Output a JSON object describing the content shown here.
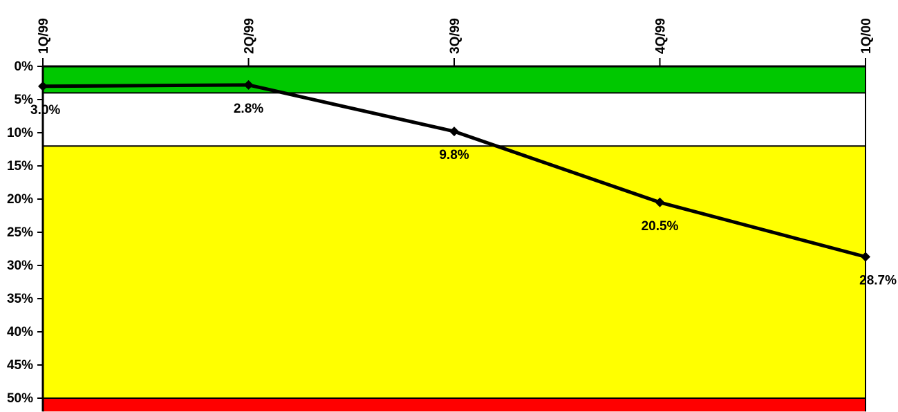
{
  "chart_data": {
    "type": "line",
    "title": "",
    "xlabel": "",
    "ylabel": "",
    "categories": [
      "1Q/99",
      "2Q/99",
      "3Q/99",
      "4Q/99",
      "1Q/00"
    ],
    "series": [
      {
        "values": [
          3.0,
          2.8,
          9.8,
          20.5,
          28.7
        ],
        "labels": [
          "3.0%",
          "2.8%",
          "9.8%",
          "20.5%",
          "28.7%"
        ],
        "color": "#000000"
      }
    ],
    "ylim": [
      0,
      52
    ],
    "y_inverted": true,
    "y_ticks": [
      0,
      5,
      10,
      15,
      20,
      25,
      30,
      35,
      40,
      45,
      50
    ],
    "y_tick_labels": [
      "0%",
      "5%",
      "10%",
      "15%",
      "20%",
      "25%",
      "30%",
      "35%",
      "40%",
      "45%",
      "50%"
    ],
    "x_axis_position": "top",
    "grid": false,
    "bands": [
      {
        "from": 0,
        "to": 4,
        "color": "#00c800"
      },
      {
        "from": 4,
        "to": 12,
        "color": "#ffffff"
      },
      {
        "from": 12,
        "to": 50,
        "color": "#ffff00"
      },
      {
        "from": 50,
        "to": 52,
        "color": "#ff0000"
      }
    ]
  }
}
